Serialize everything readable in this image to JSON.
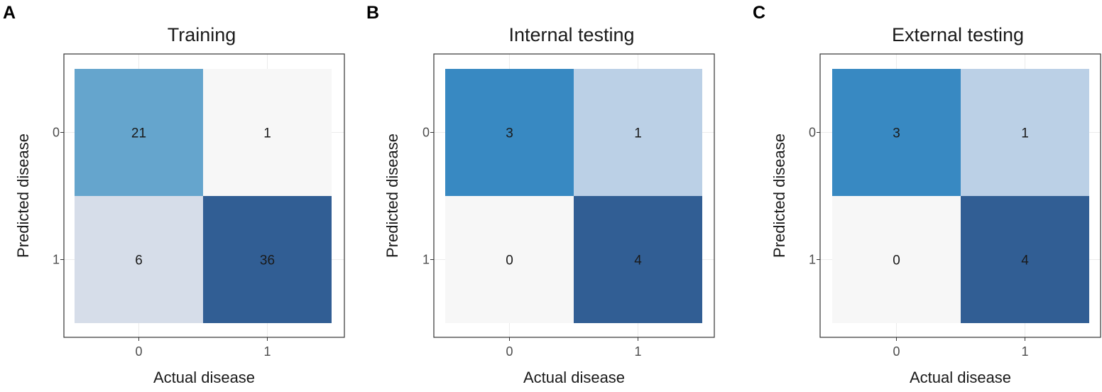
{
  "chart_data": [
    {
      "type": "heatmap",
      "panel_label": "A",
      "title": "Training",
      "xlabel": "Actual disease",
      "ylabel": "Predicted disease",
      "x_categories": [
        "0",
        "1"
      ],
      "y_categories": [
        "0",
        "1"
      ],
      "cells": [
        {
          "actual": "0",
          "predicted": "0",
          "value": 21,
          "color": "#65a5cd"
        },
        {
          "actual": "1",
          "predicted": "0",
          "value": 1,
          "color": "#f7f7f7"
        },
        {
          "actual": "0",
          "predicted": "1",
          "value": 6,
          "color": "#d6dde9"
        },
        {
          "actual": "1",
          "predicted": "1",
          "value": 36,
          "color": "#315e94"
        }
      ]
    },
    {
      "type": "heatmap",
      "panel_label": "B",
      "title": "Internal testing",
      "xlabel": "Actual disease",
      "ylabel": "Predicted disease",
      "x_categories": [
        "0",
        "1"
      ],
      "y_categories": [
        "0",
        "1"
      ],
      "cells": [
        {
          "actual": "0",
          "predicted": "0",
          "value": 3,
          "color": "#3889c2"
        },
        {
          "actual": "1",
          "predicted": "0",
          "value": 1,
          "color": "#bbd0e6"
        },
        {
          "actual": "0",
          "predicted": "1",
          "value": 0,
          "color": "#f7f7f7"
        },
        {
          "actual": "1",
          "predicted": "1",
          "value": 4,
          "color": "#315e94"
        }
      ]
    },
    {
      "type": "heatmap",
      "panel_label": "C",
      "title": "External testing",
      "xlabel": "Actual disease",
      "ylabel": "Predicted disease",
      "x_categories": [
        "0",
        "1"
      ],
      "y_categories": [
        "0",
        "1"
      ],
      "cells": [
        {
          "actual": "0",
          "predicted": "0",
          "value": 3,
          "color": "#3889c2"
        },
        {
          "actual": "1",
          "predicted": "0",
          "value": 1,
          "color": "#bbd0e6"
        },
        {
          "actual": "0",
          "predicted": "1",
          "value": 0,
          "color": "#f7f7f7"
        },
        {
          "actual": "1",
          "predicted": "1",
          "value": 4,
          "color": "#315e94"
        }
      ]
    }
  ]
}
